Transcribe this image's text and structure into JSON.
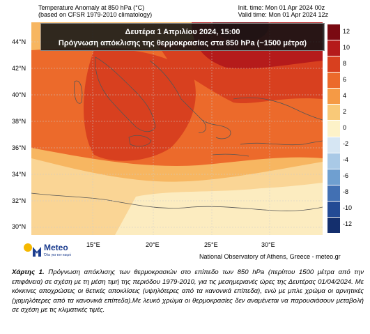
{
  "header": {
    "title_line1": "Temperature Anomaly at 850 hPa (°C)",
    "title_line2": "(based on CFSR 1979-2010 climatology)",
    "init_time": "Init. time: Mon 01 Apr 2024 00z",
    "valid_time": "Valid time: Mon 01 Apr 2024 12z"
  },
  "banner": {
    "line1": "Δευτέρα 1 Απριλίου 2024, 15:00",
    "line2": "Πρόγνωση απόκλισης της θερμοκρασίας στα 850 hPa (~1500 μέτρα)"
  },
  "axes": {
    "lat_labels": [
      "44°N",
      "42°N",
      "40°N",
      "38°N",
      "36°N",
      "34°N",
      "32°N",
      "30°N"
    ],
    "lon_labels": [
      "15°E",
      "20°E",
      "25°E",
      "30°E"
    ]
  },
  "colorbar": {
    "levels": [
      "12",
      "10",
      "8",
      "6",
      "4",
      "2",
      "0",
      "-2",
      "-4",
      "-6",
      "-8",
      "-10",
      "-12"
    ],
    "colors": [
      "#7a0a12",
      "#b51b1b",
      "#d8401f",
      "#ec6a2b",
      "#f59a45",
      "#f9c978",
      "#fdf2c8",
      "#d6e6f3",
      "#a9c9e6",
      "#6f9fd0",
      "#4270b3",
      "#234a94",
      "#142f6d"
    ]
  },
  "logo": {
    "brand": "Meteo",
    "tagline": "Όλα για τον καιρό"
  },
  "credit": "National Observatory of Athens, Greece - meteo.gr",
  "caption": {
    "label": "Χάρτης 1.",
    "text": " Πρόγνωση απόκλισης των θερμοκρασιών στο επίπεδο των 850 hPa (περίπου 1500 μέτρα από την επιφάνεια) σε σχέση με τη μέση τιμή της περιόδου 1979-2010, για τις μεσημεριανές ώρες της Δευτέρας 01/04/2024. Με κόκκινες αποχρώσεις οι θετικές αποκλίσεις (υψηλότερες από τα κανονικά επίπεδα), ενώ με μπλε χρώμα οι αρνητικές (χαμηλότερες από τα κανονικά επίπεδα).Με λευκό χρώμα οι θερμοκρασίες δεν αναμένεται να παρουσιάσουν μεταβολή σε σχέση με τις κλιματικές τιμές."
  }
}
